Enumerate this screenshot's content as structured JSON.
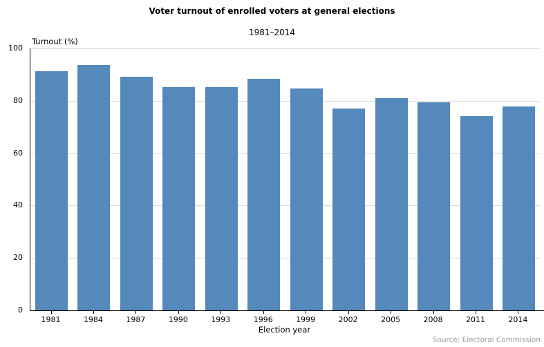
{
  "chart_data": {
    "type": "bar",
    "title": "Voter turnout of enrolled voters at general elections",
    "subtitle": "1981–2014",
    "categories": [
      "1981",
      "1984",
      "1987",
      "1990",
      "1993",
      "1996",
      "1999",
      "2002",
      "2005",
      "2008",
      "2011",
      "2014"
    ],
    "values": [
      91.4,
      93.7,
      89.1,
      85.2,
      85.2,
      88.3,
      84.8,
      77.0,
      80.9,
      79.5,
      74.2,
      77.9
    ],
    "xlabel": "Election year",
    "ylabel": "Turnout (%)",
    "ylim": [
      0,
      100
    ],
    "yticks": [
      0,
      20,
      40,
      60,
      80,
      100
    ],
    "grid": true,
    "legend": "none",
    "bar_color": "#5588BB",
    "gridline_color": "#D9D9D9",
    "axis_color": "#000000",
    "text_color": "#000000",
    "source": "Source: Electoral Commission",
    "source_color": "#9E9E9E"
  }
}
